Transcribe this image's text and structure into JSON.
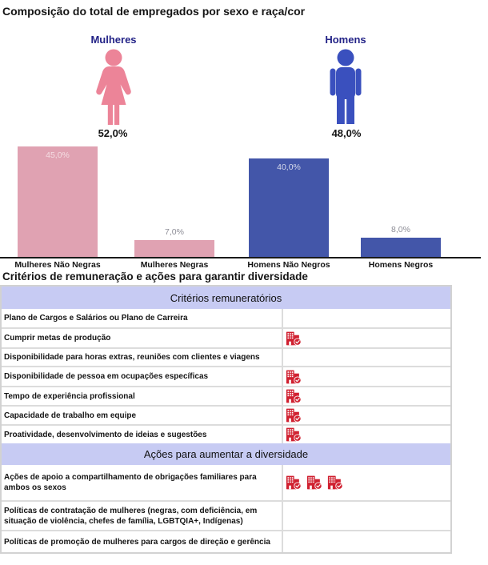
{
  "page": {
    "title1": "Composição do total de empregados por sexo e raça/cor",
    "title2": "Critérios de remuneração e ações para garantir diversidade"
  },
  "gender_summary": {
    "female": {
      "label": "Mulheres",
      "value": "52,0%"
    },
    "male": {
      "label": "Homens",
      "value": "48,0%"
    }
  },
  "chart_data": {
    "type": "bar",
    "title": "Composição do total de empregados por sexo e raça/cor",
    "categories": [
      "Mulheres Não Negras",
      "Mulheres Negras",
      "Homens Não Negros",
      "Homens Negros"
    ],
    "values": [
      45.0,
      7.0,
      40.0,
      8.0
    ],
    "value_labels": [
      "45,0%",
      "7,0%",
      "40,0%",
      "8,0%"
    ],
    "series_colors": [
      "#E0A2B2",
      "#E0A2B2",
      "#4356A9",
      "#4356A9"
    ],
    "inside_label_colors": [
      "#F4DCE2",
      "",
      "#D6DAEB",
      ""
    ],
    "summary_pictogram": {
      "Mulheres": 52.0,
      "Homens": 48.0
    },
    "xlabel": "",
    "ylabel": "",
    "ylim": [
      0,
      45
    ],
    "grid": false,
    "legend": "none"
  },
  "colors": {
    "female_pink": "#EC8498",
    "male_blue": "#3A50BE",
    "bar_pink": "#E0A2B2",
    "bar_blue": "#4356A9",
    "header_lavender": "#C7CBF3",
    "icon_red": "#D02030",
    "navy_label": "#232387"
  },
  "table": {
    "icon_name": "company-check-icon",
    "sections": [
      {
        "header": "Critérios remuneratórios",
        "rows": [
          {
            "label": "Plano de Cargos e Salários ou Plano de Carreira",
            "icons": 0
          },
          {
            "label": "Cumprir metas de produção",
            "icons": 1
          },
          {
            "label": "Disponibilidade para horas extras, reuniões com clientes e viagens",
            "icons": 0
          },
          {
            "label": "Disponibilidade de pessoa em ocupações específicas",
            "icons": 1
          },
          {
            "label": "Tempo de experiência profissional",
            "icons": 1
          },
          {
            "label": "Capacidade de trabalho em equipe",
            "icons": 1
          },
          {
            "label": "Proatividade, desenvolvimento de ideias e sugestões",
            "icons": 1
          }
        ]
      },
      {
        "header": "Ações para aumentar a diversidade",
        "rows": [
          {
            "label": "Ações de apoio a compartilhamento de obrigações familiares para ambos os sexos",
            "icons": 3
          },
          {
            "label": "Políticas de contratação de mulheres (negras, com deficiência, em situação de violência, chefes de família, LGBTQIA+, Indígenas)",
            "icons": 0
          },
          {
            "label": "Políticas de promoção de mulheres para cargos de direção e gerência",
            "icons": 0
          }
        ]
      }
    ]
  }
}
